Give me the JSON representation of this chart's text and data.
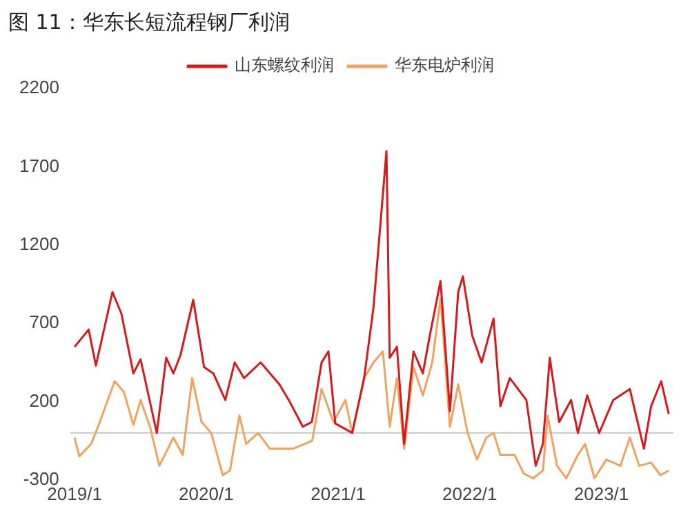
{
  "chart_data": {
    "type": "line",
    "title": "图 11：华东长短流程钢厂利润",
    "series": [
      {
        "name": "山东螺纹利润",
        "color": "#d7191c",
        "x": [
          "2019-01-01",
          "2019-02-09",
          "2019-03-01",
          "2019-04-16",
          "2019-05-11",
          "2019-06-13",
          "2019-07-03",
          "2019-08-17",
          "2019-09-12",
          "2019-10-02",
          "2019-10-22",
          "2019-11-26",
          "2019-12-26",
          "2020-01-21",
          "2020-02-23",
          "2020-03-20",
          "2020-04-15",
          "2020-05-31",
          "2020-07-22",
          "2020-08-17",
          "2020-09-25",
          "2020-10-20",
          "2020-11-16",
          "2020-12-05",
          "2020-12-24",
          "2021-02-09",
          "2021-03-14",
          "2021-04-09",
          "2021-05-15",
          "2021-05-24",
          "2021-06-13",
          "2021-07-03",
          "2021-07-29",
          "2021-08-24",
          "2021-09-12",
          "2021-10-12",
          "2021-11-07",
          "2021-11-30",
          "2021-12-13",
          "2022-01-08",
          "2022-02-03",
          "2022-03-08",
          "2022-03-27",
          "2022-04-22",
          "2022-06-07",
          "2022-07-03",
          "2022-07-23",
          "2022-08-11",
          "2022-09-06",
          "2022-10-09",
          "2022-10-28",
          "2022-11-23",
          "2022-12-26",
          "2023-02-03",
          "2023-03-21",
          "2023-04-29",
          "2023-05-19",
          "2023-06-16",
          "2023-07-07"
        ],
        "values": [
          550,
          660,
          430,
          900,
          760,
          380,
          470,
          0,
          480,
          380,
          500,
          850,
          420,
          380,
          210,
          450,
          350,
          450,
          310,
          210,
          40,
          70,
          450,
          520,
          60,
          0,
          350,
          800,
          1800,
          480,
          550,
          -70,
          520,
          380,
          620,
          970,
          140,
          900,
          1000,
          620,
          450,
          730,
          170,
          350,
          210,
          -210,
          -70,
          480,
          70,
          210,
          0,
          240,
          0,
          210,
          280,
          -100,
          170,
          330,
          120
        ]
      },
      {
        "name": "华东电炉利润",
        "color": "#f0a35e",
        "x": [
          "2019-01-01",
          "2019-01-14",
          "2019-02-16",
          "2019-03-07",
          "2019-04-22",
          "2019-05-18",
          "2019-06-13",
          "2019-07-03",
          "2019-07-29",
          "2019-08-24",
          "2019-10-02",
          "2019-10-28",
          "2019-11-23",
          "2019-12-19",
          "2020-01-15",
          "2020-02-16",
          "2020-03-07",
          "2020-04-02",
          "2020-04-21",
          "2020-05-24",
          "2020-06-25",
          "2020-08-30",
          "2020-10-21",
          "2020-11-16",
          "2020-12-19",
          "2021-01-21",
          "2021-02-09",
          "2021-03-14",
          "2021-04-09",
          "2021-05-05",
          "2021-05-24",
          "2021-06-13",
          "2021-07-03",
          "2021-07-29",
          "2021-08-24",
          "2021-09-19",
          "2021-10-12",
          "2021-11-07",
          "2021-11-30",
          "2021-12-26",
          "2022-01-21",
          "2022-02-16",
          "2022-03-08",
          "2022-03-27",
          "2022-05-05",
          "2022-05-31",
          "2022-06-26",
          "2022-07-23",
          "2022-08-05",
          "2022-08-31",
          "2022-09-26",
          "2022-10-28",
          "2022-11-17",
          "2022-12-13",
          "2023-01-15",
          "2023-02-23",
          "2023-03-21",
          "2023-04-16",
          "2023-05-19",
          "2023-06-14",
          "2023-07-07"
        ],
        "values": [
          -30,
          -150,
          -70,
          40,
          330,
          260,
          50,
          210,
          40,
          -210,
          -30,
          -140,
          350,
          70,
          0,
          -270,
          -240,
          110,
          -70,
          0,
          -100,
          -100,
          -50,
          280,
          70,
          210,
          0,
          350,
          450,
          520,
          40,
          350,
          -100,
          420,
          240,
          450,
          860,
          40,
          310,
          0,
          -170,
          -30,
          0,
          -140,
          -140,
          -260,
          -290,
          -240,
          110,
          -210,
          -290,
          -140,
          -70,
          -290,
          -170,
          -210,
          -30,
          -210,
          -190,
          -270,
          -240
        ]
      }
    ],
    "xlim": [
      "2018-12-20",
      "2023-07-20"
    ],
    "xticks": [
      {
        "value": "2019-01-01",
        "label": "2019/1"
      },
      {
        "value": "2020-01-01",
        "label": "2020/1"
      },
      {
        "value": "2021-01-01",
        "label": "2021/1"
      },
      {
        "value": "2022-01-01",
        "label": "2022/1"
      },
      {
        "value": "2023-01-01",
        "label": "2023/1"
      }
    ],
    "ylim": [
      -300,
      2200
    ],
    "yticks": [
      -300,
      200,
      700,
      1200,
      1700,
      2200
    ],
    "ref_lines": [
      {
        "axis": "y",
        "value": 0,
        "color": "#c8c8c8"
      }
    ],
    "grid": false,
    "legend": "top",
    "marker": "none",
    "line_style": "solid"
  }
}
